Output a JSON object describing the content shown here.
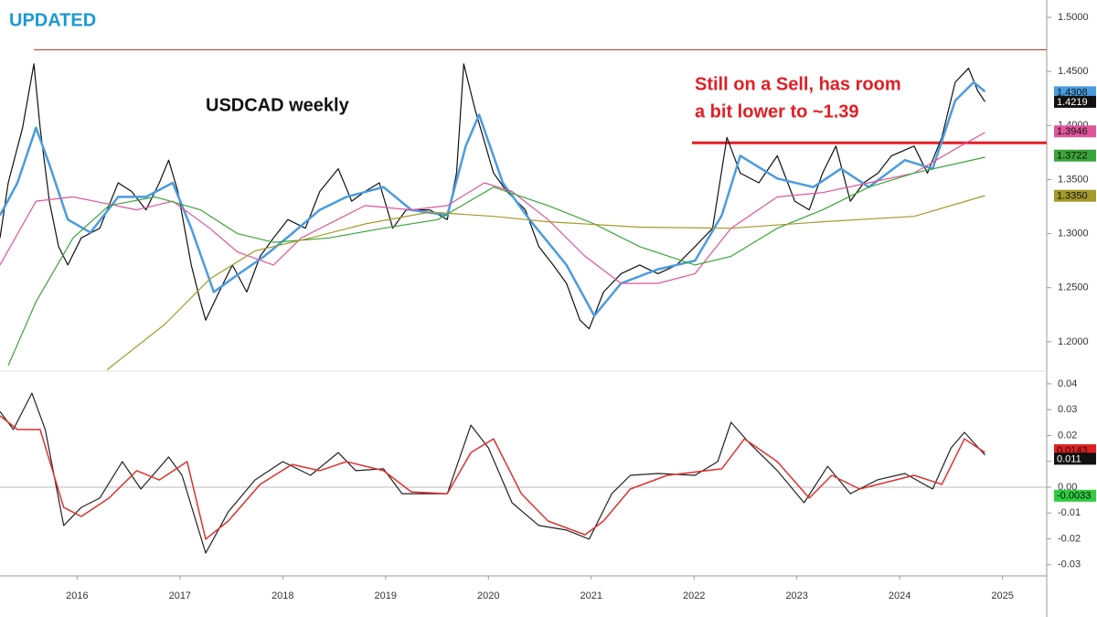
{
  "chart_data": [
    {
      "type": "line",
      "annotations": [
        "UPDATED",
        "USDCAD weekly",
        "Still on a Sell, has room",
        "a bit lower to ~1.39"
      ],
      "xlim": [
        2015.25,
        2025.43
      ],
      "xticks": [
        2016,
        2017,
        2018,
        2019,
        2020,
        2021,
        2022,
        2023,
        2024,
        2025
      ],
      "ylim": [
        1.1737,
        1.5161
      ],
      "yticks": [
        {
          "value": 1.2,
          "label": "1.2000"
        },
        {
          "value": 1.25,
          "label": "1.2500"
        },
        {
          "value": 1.3,
          "label": "1.3000"
        },
        {
          "value": 1.35,
          "label": "1.3500"
        },
        {
          "value": 1.4,
          "label": "1.4000"
        },
        {
          "value": 1.45,
          "label": "1.4500"
        },
        {
          "value": 1.5,
          "label": "1.5000"
        }
      ],
      "series": [
        {
          "color": "#111111",
          "line_width": 1.2,
          "x": [
            2015.25,
            2015.33,
            2015.47,
            2015.58,
            2015.64,
            2015.73,
            2015.82,
            2015.91,
            2016.04,
            2016.22,
            2016.4,
            2016.53,
            2016.67,
            2016.8,
            2016.89,
            2016.98,
            2017.11,
            2017.2,
            2017.25,
            2017.38,
            2017.51,
            2017.65,
            2017.78,
            2017.91,
            2018.05,
            2018.22,
            2018.36,
            2018.54,
            2018.67,
            2018.8,
            2018.94,
            2019.07,
            2019.2,
            2019.43,
            2019.6,
            2019.69,
            2019.76,
            2019.87,
            2020.05,
            2020.18,
            2020.36,
            2020.49,
            2020.63,
            2020.76,
            2020.89,
            2020.98,
            2021.12,
            2021.29,
            2021.47,
            2021.65,
            2021.83,
            2022.01,
            2022.18,
            2022.32,
            2022.45,
            2022.63,
            2022.81,
            2022.98,
            2023.12,
            2023.25,
            2023.38,
            2023.52,
            2023.65,
            2023.79,
            2023.92,
            2024.14,
            2024.27,
            2024.41,
            2024.54,
            2024.67,
            2024.76,
            2024.83
          ],
          "values": [
            1.296,
            1.347,
            1.398,
            1.457,
            1.398,
            1.33,
            1.288,
            1.271,
            1.296,
            1.305,
            1.347,
            1.339,
            1.322,
            1.347,
            1.368,
            1.339,
            1.271,
            1.237,
            1.22,
            1.246,
            1.271,
            1.246,
            1.279,
            1.296,
            1.313,
            1.305,
            1.339,
            1.36,
            1.33,
            1.339,
            1.347,
            1.305,
            1.322,
            1.322,
            1.313,
            1.356,
            1.457,
            1.415,
            1.356,
            1.339,
            1.322,
            1.288,
            1.271,
            1.254,
            1.22,
            1.212,
            1.246,
            1.263,
            1.271,
            1.263,
            1.271,
            1.288,
            1.305,
            1.389,
            1.356,
            1.347,
            1.372,
            1.33,
            1.322,
            1.356,
            1.381,
            1.33,
            1.347,
            1.356,
            1.372,
            1.381,
            1.356,
            1.389,
            1.44,
            1.453,
            1.432,
            1.422
          ]
        },
        {
          "color": "#4a9be0",
          "line_width": 2.5,
          "x": [
            2015.25,
            2015.42,
            2015.6,
            2015.73,
            2015.91,
            2016.13,
            2016.4,
            2016.67,
            2016.93,
            2017.11,
            2017.33,
            2017.56,
            2017.82,
            2018.09,
            2018.36,
            2018.62,
            2018.98,
            2019.25,
            2019.6,
            2019.78,
            2019.91,
            2020.14,
            2020.4,
            2020.76,
            2021.03,
            2021.29,
            2021.65,
            2022.01,
            2022.27,
            2022.45,
            2022.81,
            2023.16,
            2023.43,
            2023.7,
            2024.05,
            2024.32,
            2024.54,
            2024.72,
            2024.83
          ],
          "values": [
            1.317,
            1.347,
            1.398,
            1.364,
            1.313,
            1.301,
            1.334,
            1.334,
            1.347,
            1.305,
            1.246,
            1.262,
            1.279,
            1.3,
            1.322,
            1.334,
            1.343,
            1.322,
            1.317,
            1.381,
            1.41,
            1.347,
            1.313,
            1.271,
            1.224,
            1.254,
            1.267,
            1.275,
            1.317,
            1.372,
            1.351,
            1.343,
            1.36,
            1.343,
            1.368,
            1.36,
            1.423,
            1.44,
            1.4315
          ]
        },
        {
          "color": "#e0559a",
          "line_width": 1.2,
          "x": [
            2015.25,
            2015.6,
            2015.96,
            2016.58,
            2016.93,
            2017.29,
            2017.56,
            2017.91,
            2018.18,
            2018.8,
            2019.25,
            2019.6,
            2019.96,
            2020.23,
            2020.58,
            2020.94,
            2021.29,
            2021.65,
            2022.01,
            2022.36,
            2022.81,
            2023.25,
            2023.7,
            2024.14,
            2024.59,
            2024.83
          ],
          "values": [
            1.271,
            1.33,
            1.334,
            1.322,
            1.33,
            1.305,
            1.283,
            1.271,
            1.296,
            1.326,
            1.322,
            1.326,
            1.347,
            1.339,
            1.313,
            1.279,
            1.254,
            1.254,
            1.263,
            1.305,
            1.334,
            1.338,
            1.347,
            1.356,
            1.381,
            1.3935
          ]
        },
        {
          "color": "#3aa53a",
          "line_width": 1.2,
          "x": [
            2015.33,
            2015.6,
            2015.96,
            2016.31,
            2016.76,
            2017.2,
            2017.56,
            2017.91,
            2018.45,
            2018.98,
            2019.51,
            2020.05,
            2020.58,
            2021.03,
            2021.47,
            2022.01,
            2022.36,
            2022.81,
            2023.25,
            2023.7,
            2024.14,
            2024.83
          ],
          "values": [
            1.178,
            1.237,
            1.296,
            1.326,
            1.334,
            1.322,
            1.3,
            1.292,
            1.296,
            1.305,
            1.313,
            1.343,
            1.326,
            1.309,
            1.288,
            1.271,
            1.279,
            1.305,
            1.322,
            1.343,
            1.356,
            1.3707
          ]
        },
        {
          "color": "#a39a2a",
          "line_width": 1.2,
          "x": [
            2016.29,
            2016.85,
            2017.29,
            2017.73,
            2018.27,
            2018.8,
            2019.43,
            2020.05,
            2020.58,
            2021.47,
            2022.36,
            2023.25,
            2024.14,
            2024.83
          ],
          "values": [
            1.174,
            1.216,
            1.258,
            1.284,
            1.296,
            1.309,
            1.32,
            1.316,
            1.311,
            1.306,
            1.305,
            1.311,
            1.316,
            1.3352
          ]
        }
      ],
      "hlines": [
        {
          "value": 1.47,
          "from": 2015.58,
          "color": "#c0392b",
          "line_width": 1
        },
        {
          "value": 1.384,
          "from": 2021.98,
          "color": "#e31e24",
          "line_width": 3
        }
      ],
      "badges": [
        {
          "value": 1.4308,
          "color": "#4a9be0"
        },
        {
          "value": 1.4219,
          "color": "#111111"
        },
        {
          "value": 1.3946,
          "color": "#e0559a"
        },
        {
          "value": 1.3722,
          "color": "#3aa53a"
        },
        {
          "value": 1.335,
          "label": "1.3350",
          "color": "#a39a2a"
        }
      ]
    },
    {
      "type": "line",
      "xlim": [
        2015.25,
        2025.43
      ],
      "ylim": [
        -0.0343,
        0.0442
      ],
      "yticks": [
        -0.03,
        -0.02,
        -0.01,
        {
          "value": 0,
          "label": "0.00"
        },
        0.01,
        0.02,
        0.03,
        0.04
      ],
      "series": [
        {
          "color": "#222222",
          "line_width": 1.2,
          "x": [
            2015.25,
            2015.38,
            2015.56,
            2015.69,
            2015.87,
            2016.04,
            2016.22,
            2016.44,
            2016.62,
            2016.89,
            2017.02,
            2017.25,
            2017.47,
            2017.73,
            2018.0,
            2018.27,
            2018.54,
            2018.71,
            2018.98,
            2019.16,
            2019.43,
            2019.6,
            2019.83,
            2020.0,
            2020.23,
            2020.49,
            2020.76,
            2020.98,
            2021.2,
            2021.38,
            2021.65,
            2022.01,
            2022.23,
            2022.36,
            2022.54,
            2022.81,
            2023.07,
            2023.3,
            2023.52,
            2023.78,
            2024.05,
            2024.32,
            2024.5,
            2024.63,
            2024.83
          ],
          "values": [
            0.0293,
            0.0223,
            0.0364,
            0.0223,
            -0.0148,
            -0.0078,
            -0.0042,
            0.0099,
            -0.0007,
            0.0117,
            0.0046,
            -0.0255,
            -0.0095,
            0.0028,
            0.0099,
            0.0046,
            0.0134,
            0.0064,
            0.0071,
            -0.0025,
            -0.0025,
            -0.0025,
            0.024,
            0.0152,
            -0.006,
            -0.0148,
            -0.0166,
            -0.0201,
            -0.0025,
            0.0046,
            0.0053,
            0.0046,
            0.0099,
            0.0251,
            0.017,
            0.0064,
            -0.006,
            0.0081,
            -0.0025,
            0.0028,
            0.0053,
            -0.0007,
            0.0152,
            0.0212,
            0.0124
          ]
        },
        {
          "color": "#e03030",
          "line_width": 1.5,
          "x": [
            2015.25,
            2015.42,
            2015.64,
            2015.87,
            2016.04,
            2016.31,
            2016.58,
            2016.8,
            2017.07,
            2017.25,
            2017.47,
            2017.78,
            2018.09,
            2018.36,
            2018.62,
            2018.98,
            2019.25,
            2019.6,
            2019.83,
            2020.05,
            2020.32,
            2020.58,
            2020.94,
            2021.12,
            2021.38,
            2021.74,
            2022.27,
            2022.49,
            2022.81,
            2023.12,
            2023.34,
            2023.61,
            2024.14,
            2024.41,
            2024.63,
            2024.83
          ],
          "values": [
            0.0276,
            0.0223,
            0.0223,
            -0.0078,
            -0.0113,
            -0.0042,
            0.0064,
            0.0028,
            0.0099,
            -0.0201,
            -0.0131,
            0.0011,
            0.0088,
            0.0064,
            0.0099,
            0.0064,
            -0.0018,
            -0.0025,
            0.0134,
            0.0187,
            -0.0025,
            -0.0131,
            -0.0184,
            -0.0131,
            -0.0007,
            0.0046,
            0.0071,
            0.0187,
            0.0099,
            -0.0042,
            0.0046,
            -0.0007,
            0.0046,
            0.0011,
            0.0187,
            0.0134
          ]
        }
      ],
      "hlines": [
        {
          "value": 0,
          "from": 2015.25,
          "color": "#bbbbbb",
          "line_width": 1
        }
      ],
      "badges": [
        {
          "value": 0.0143,
          "color": "#e02020"
        },
        {
          "value": 0.011,
          "color": "#111111"
        },
        {
          "value": -0.0033,
          "color": "#2ecc40"
        }
      ]
    }
  ]
}
